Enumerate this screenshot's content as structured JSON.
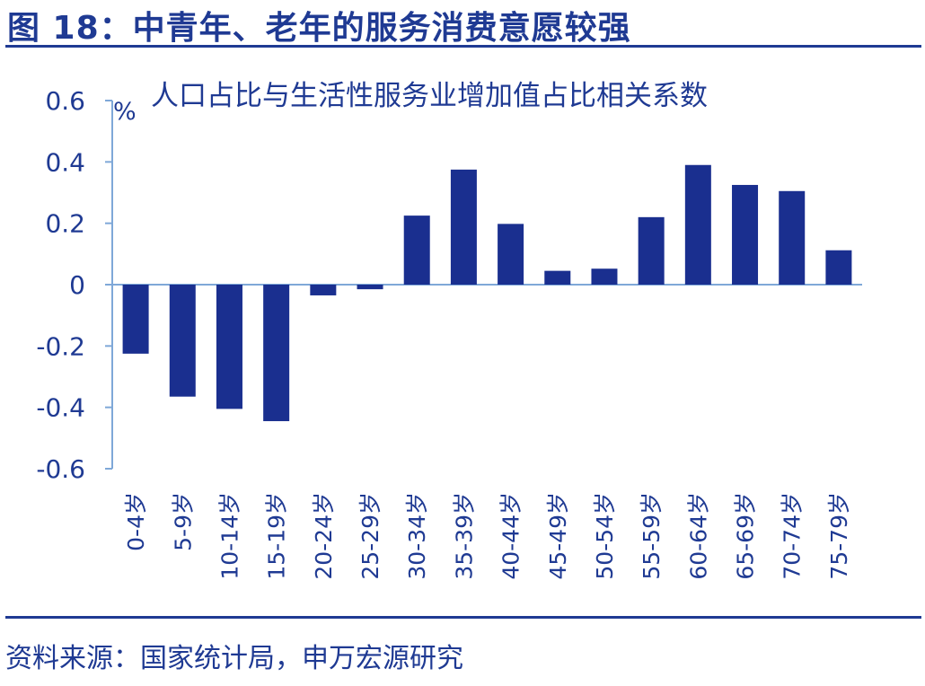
{
  "figure_title": "图 18：中青年、老年的服务消费意愿较强",
  "source": "资料来源：国家统计局，申万宏源研究",
  "colors": {
    "accent": "#1f3a93",
    "bar": "#1a2f8f",
    "axis": "#7fa8d8"
  },
  "chart_data": {
    "type": "bar",
    "title": "人口占比与生活性服务业增加值占比相关系数",
    "ylabel": "%",
    "xlabel": "",
    "ylim": [
      -0.6,
      0.6
    ],
    "yticks": [
      0.6,
      0.4,
      0.2,
      0,
      -0.2,
      -0.4,
      -0.6
    ],
    "ytick_labels": [
      "0.6",
      "0.4",
      "0.2",
      "0",
      "-0.2",
      "-0.4",
      "-0.6"
    ],
    "categories": [
      "0-4岁",
      "5-9岁",
      "10-14岁",
      "15-19岁",
      "20-24岁",
      "25-29岁",
      "30-34岁",
      "35-39岁",
      "40-44岁",
      "45-49岁",
      "50-54岁",
      "55-59岁",
      "60-64岁",
      "65-69岁",
      "70-74岁",
      "75-79岁"
    ],
    "values": [
      -0.225,
      -0.365,
      -0.405,
      -0.445,
      -0.035,
      -0.015,
      0.225,
      0.375,
      0.198,
      0.045,
      0.052,
      0.22,
      0.39,
      0.325,
      0.305,
      0.112
    ],
    "grid": false,
    "legend": "none"
  }
}
